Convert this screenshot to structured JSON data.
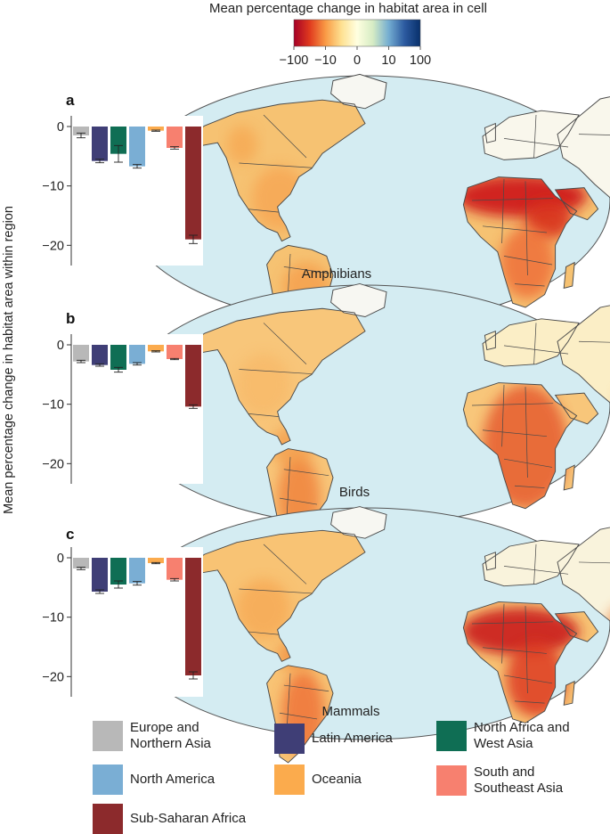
{
  "colorbar": {
    "title": "Mean percentage change in habitat area in cell",
    "ticks": [
      "−100",
      "−10",
      "0",
      "10",
      "100"
    ],
    "colors": [
      "#a50026",
      "#e03a1e",
      "#f99a45",
      "#fee090",
      "#ffffe0",
      "#d6ecc4",
      "#74add1",
      "#2c5aa0",
      "#08306b"
    ]
  },
  "shared_ylabel": "Mean percentage change in habitat area within region",
  "map_colors": {
    "ocean": "#d4ecf2",
    "border": "#4a4a4a",
    "low": "#f7f7f2"
  },
  "regions": [
    {
      "name": "Europe and Northern Asia",
      "lines": [
        "Europe and",
        "Northern Asia"
      ],
      "color": "#b8b8b8"
    },
    {
      "name": "Latin America",
      "lines": [
        "Latin America"
      ],
      "color": "#3f3e76"
    },
    {
      "name": "North Africa and West Asia",
      "lines": [
        "North Africa and",
        "West Asia"
      ],
      "color": "#0f6e54"
    },
    {
      "name": "North America",
      "lines": [
        "North America"
      ],
      "color": "#7aaed4"
    },
    {
      "name": "Oceania",
      "lines": [
        "Oceania"
      ],
      "color": "#fbab4d"
    },
    {
      "name": "South and Southeast Asia",
      "lines": [
        "South and",
        "Southeast Asia"
      ],
      "color": "#f7806f"
    },
    {
      "name": "Sub-Saharan Africa",
      "lines": [
        "Sub-Saharan Africa"
      ],
      "color": "#8c2a2c"
    }
  ],
  "chart_data": [
    {
      "type": "bar",
      "panel": "a",
      "map_label": "Amphibians",
      "categories": [
        "Europe and Northern Asia",
        "Latin America",
        "North Africa and West Asia",
        "North America",
        "Oceania",
        "South and Southeast Asia",
        "Sub-Saharan Africa"
      ],
      "values": [
        -1.5,
        -5.8,
        -4.6,
        -6.7,
        -0.7,
        -3.6,
        -19.0
      ],
      "errors": [
        0.4,
        0.3,
        1.4,
        0.3,
        0.1,
        0.2,
        0.7
      ],
      "ylim": [
        -22.5,
        0
      ],
      "yticks": [
        0,
        -10,
        -20
      ],
      "ytick_labels": [
        "0",
        "−10",
        "−20"
      ]
    },
    {
      "type": "bar",
      "panel": "b",
      "map_label": "Birds",
      "categories": [
        "Europe and Northern Asia",
        "Latin America",
        "North Africa and West Asia",
        "North America",
        "Oceania",
        "South and Southeast Asia",
        "Sub-Saharan Africa"
      ],
      "values": [
        -2.8,
        -3.4,
        -4.2,
        -3.2,
        -1.1,
        -2.4,
        -10.4
      ],
      "errors": [
        0.2,
        0.2,
        0.4,
        0.2,
        0.1,
        0.1,
        0.3
      ],
      "ylim": [
        -22.5,
        0
      ],
      "yticks": [
        0,
        -10,
        -20
      ],
      "ytick_labels": [
        "0",
        "−10",
        "−20"
      ]
    },
    {
      "type": "bar",
      "panel": "c",
      "map_label": "Mammals",
      "categories": [
        "Europe and Northern Asia",
        "Latin America",
        "North Africa and West Asia",
        "North America",
        "Oceania",
        "South and Southeast Asia",
        "Sub-Saharan Africa"
      ],
      "values": [
        -1.8,
        -5.7,
        -4.5,
        -4.3,
        -0.9,
        -3.7,
        -19.8
      ],
      "errors": [
        0.2,
        0.3,
        0.6,
        0.3,
        0.1,
        0.2,
        0.6
      ],
      "ylim": [
        -22.5,
        0
      ],
      "yticks": [
        0,
        -10,
        -20
      ],
      "ytick_labels": [
        "0",
        "−10",
        "−20"
      ]
    }
  ]
}
